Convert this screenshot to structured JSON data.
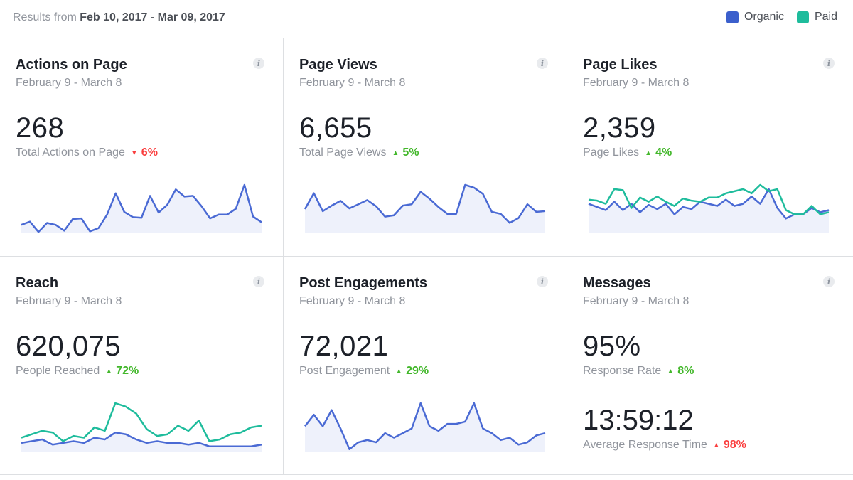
{
  "header": {
    "results_prefix": "Results from",
    "range": "Feb 10, 2017 - Mar 09, 2017",
    "legend": [
      {
        "label": "Organic",
        "color": "#3b5fcc"
      },
      {
        "label": "Paid",
        "color": "#1ebc9c"
      }
    ]
  },
  "colors": {
    "organic": "#4a6ad4",
    "paid": "#1ebc9c",
    "fill": "#eef1fb",
    "up": "#42b72a",
    "down": "#fa3e3e"
  },
  "cards": [
    {
      "title": "Actions on Page",
      "date": "February 9 - March 8",
      "value": "268",
      "metric": "Total Actions on Page",
      "trend": "6%",
      "direction": "down",
      "series": {
        "organic": [
          13,
          18,
          2,
          16,
          13,
          4,
          22,
          23,
          3,
          8,
          29,
          62,
          33,
          25,
          24,
          58,
          32,
          44,
          68,
          57,
          58,
          42,
          23,
          29,
          29,
          38,
          75,
          26,
          17
        ]
      }
    },
    {
      "title": "Page Views",
      "date": "February 9 - March 8",
      "value": "6,655",
      "metric": "Total Page Views",
      "trend": "5%",
      "direction": "up",
      "series": {
        "organic": [
          35,
          58,
          32,
          40,
          47,
          36,
          42,
          48,
          39,
          24,
          26,
          40,
          42,
          60,
          50,
          38,
          28,
          28,
          70,
          66,
          57,
          31,
          28,
          15,
          22,
          42,
          31,
          32
        ]
      }
    },
    {
      "title": "Page Likes",
      "date": "February 9 - March 8",
      "value": "2,359",
      "metric": "Page Likes",
      "trend": "4%",
      "direction": "up",
      "series": {
        "organic": [
          28,
          25,
          22,
          30,
          22,
          28,
          20,
          27,
          23,
          28,
          18,
          25,
          23,
          30,
          28,
          26,
          32,
          26,
          28,
          35,
          28,
          42,
          24,
          14,
          18,
          18,
          24,
          20,
          22
        ],
        "paid": [
          32,
          31,
          28,
          42,
          41,
          24,
          34,
          30,
          35,
          30,
          26,
          33,
          31,
          30,
          34,
          34,
          38,
          40,
          42,
          38,
          46,
          40,
          42,
          22,
          18,
          18,
          26,
          18,
          20
        ]
      }
    },
    {
      "title": "Reach",
      "date": "February 9 - March 8",
      "value": "620,075",
      "metric": "People Reached",
      "trend": "72%",
      "direction": "up",
      "series": {
        "organic": [
          10,
          12,
          14,
          8,
          10,
          12,
          10,
          16,
          14,
          22,
          20,
          14,
          10,
          12,
          10,
          10,
          8,
          10,
          6,
          6,
          6,
          6,
          6,
          8
        ],
        "paid": [
          16,
          20,
          24,
          22,
          12,
          18,
          16,
          28,
          24,
          56,
          52,
          44,
          26,
          18,
          20,
          30,
          24,
          36,
          12,
          14,
          20,
          22,
          28,
          30
        ]
      }
    },
    {
      "title": "Post Engagements",
      "date": "February 9 - March 8",
      "value": "72,021",
      "metric": "Post Engagement",
      "trend": "29%",
      "direction": "up",
      "series": {
        "organic": [
          22,
          32,
          22,
          36,
          20,
          2,
          8,
          10,
          8,
          16,
          12,
          16,
          20,
          42,
          22,
          18,
          24,
          24,
          26,
          42,
          20,
          16,
          10,
          12,
          6,
          8,
          14,
          16
        ]
      }
    },
    {
      "title": "Messages",
      "date": "February 9 - March 8",
      "value": "95%",
      "metric": "Response Rate",
      "trend": "8%",
      "direction": "up",
      "value2": "13:59:12",
      "metric2": "Average Response Time",
      "trend2": "98%",
      "direction2": "down"
    }
  ]
}
